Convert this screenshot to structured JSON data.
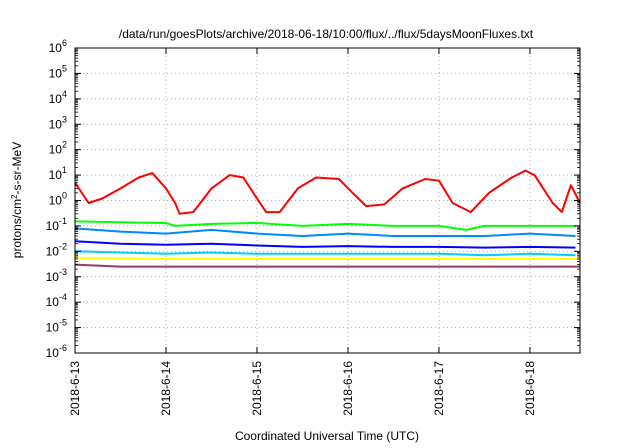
{
  "chart_data": {
    "type": "line",
    "title": "/data/run/goesPlots/archive/2018-06-18/10:00/flux/../flux/5daysMoonFluxes.txt",
    "xlabel": "Coordinated Universal Time (UTC)",
    "ylabel": {
      "prefix": "protons/cm",
      "superscript": "2",
      "suffix": "-s-sr-MeV"
    },
    "yscale": "log",
    "ylim_exp": [
      -6,
      6
    ],
    "y_ticks": [
      {
        "base": "10",
        "exp": "-6"
      },
      {
        "base": "10",
        "exp": "-5"
      },
      {
        "base": "10",
        "exp": "-4"
      },
      {
        "base": "10",
        "exp": "-3"
      },
      {
        "base": "10",
        "exp": "-2"
      },
      {
        "base": "10",
        "exp": "-1"
      },
      {
        "base": "10",
        "exp": "0"
      },
      {
        "base": "10",
        "exp": "1"
      },
      {
        "base": "10",
        "exp": "2"
      },
      {
        "base": "10",
        "exp": "3"
      },
      {
        "base": "10",
        "exp": "4"
      },
      {
        "base": "10",
        "exp": "5"
      },
      {
        "base": "10",
        "exp": "6"
      }
    ],
    "xlim_days": [
      0,
      5.55
    ],
    "x_ticks": [
      {
        "label": "2018-6-13",
        "day": 0
      },
      {
        "label": "2018-6-14",
        "day": 1
      },
      {
        "label": "2018-6-15",
        "day": 2
      },
      {
        "label": "2018-6-16",
        "day": 3
      },
      {
        "label": "2018-6-17",
        "day": 4
      },
      {
        "label": "2018-6-18",
        "day": 5
      }
    ],
    "grid": true,
    "series": [
      {
        "color": "#ff0000",
        "x": [
          0.0,
          0.15,
          0.3,
          0.5,
          0.7,
          0.85,
          1.0,
          1.1,
          1.15,
          1.3,
          1.5,
          1.7,
          1.85,
          2.0,
          2.1,
          2.25,
          2.45,
          2.65,
          2.9,
          3.05,
          3.2,
          3.4,
          3.6,
          3.85,
          4.0,
          4.15,
          4.35,
          4.55,
          4.8,
          4.95,
          5.05,
          5.25,
          5.35,
          5.45,
          5.55
        ],
        "y": [
          5,
          0.8,
          1.2,
          3,
          8,
          12,
          3,
          0.8,
          0.3,
          0.35,
          3,
          10,
          8,
          1.2,
          0.35,
          0.35,
          3,
          8,
          7,
          2,
          0.6,
          0.7,
          3,
          7,
          6,
          0.8,
          0.35,
          2,
          8,
          15,
          10,
          0.8,
          0.35,
          4,
          0.8
        ]
      },
      {
        "color": "#00ff00",
        "x": [
          0.0,
          0.5,
          1.0,
          1.1,
          1.5,
          2.0,
          2.5,
          3.0,
          3.5,
          4.0,
          4.3,
          4.5,
          5.0,
          5.5
        ],
        "y": [
          0.15,
          0.14,
          0.13,
          0.1,
          0.12,
          0.13,
          0.1,
          0.12,
          0.1,
          0.1,
          0.07,
          0.1,
          0.1,
          0.1
        ]
      },
      {
        "color": "#0088ff",
        "x": [
          0.0,
          0.5,
          1.0,
          1.5,
          2.0,
          2.5,
          3.0,
          3.5,
          4.0,
          4.5,
          5.0,
          5.5
        ],
        "y": [
          0.08,
          0.06,
          0.05,
          0.07,
          0.05,
          0.04,
          0.05,
          0.04,
          0.04,
          0.04,
          0.05,
          0.04
        ]
      },
      {
        "color": "#0000ff",
        "x": [
          0.0,
          0.5,
          1.0,
          1.5,
          2.0,
          2.5,
          3.0,
          3.5,
          4.0,
          4.5,
          5.0,
          5.5
        ],
        "y": [
          0.025,
          0.02,
          0.018,
          0.02,
          0.017,
          0.015,
          0.016,
          0.015,
          0.015,
          0.014,
          0.015,
          0.014
        ]
      },
      {
        "color": "#00ccff",
        "x": [
          0.0,
          0.5,
          1.0,
          1.5,
          2.0,
          2.5,
          3.0,
          3.5,
          4.0,
          4.5,
          5.0,
          5.5
        ],
        "y": [
          0.01,
          0.009,
          0.008,
          0.009,
          0.008,
          0.008,
          0.008,
          0.008,
          0.008,
          0.007,
          0.008,
          0.007
        ]
      },
      {
        "color": "#ffff00",
        "x": [
          0.0,
          1.0,
          2.0,
          3.0,
          4.0,
          5.0,
          5.55
        ],
        "y": [
          0.0055,
          0.005,
          0.005,
          0.005,
          0.005,
          0.005,
          0.005
        ]
      },
      {
        "color": "#9a3a6a",
        "x": [
          0.0,
          0.5,
          1.0,
          1.5,
          2.0,
          2.5,
          3.0,
          3.5,
          4.0,
          4.5,
          5.0,
          5.55
        ],
        "y": [
          0.003,
          0.0025,
          0.0025,
          0.0025,
          0.0025,
          0.0025,
          0.0025,
          0.0025,
          0.0025,
          0.0025,
          0.0025,
          0.0025
        ]
      }
    ]
  }
}
